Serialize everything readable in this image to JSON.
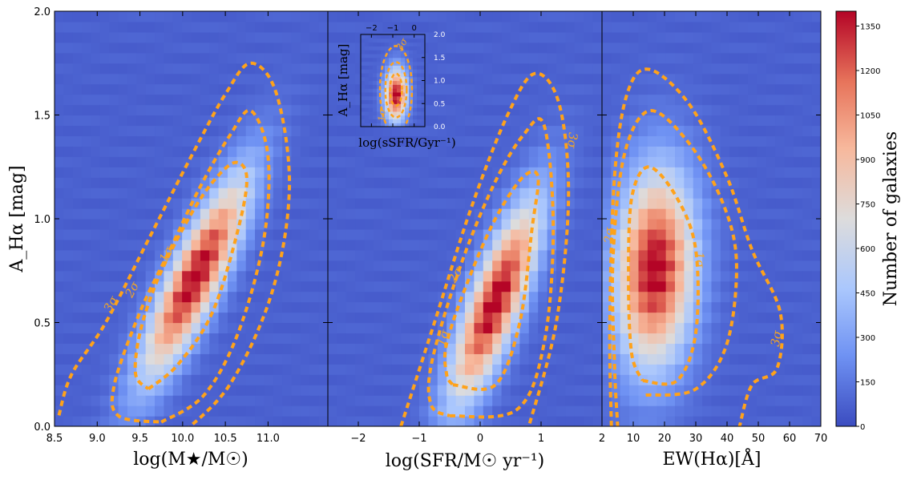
{
  "chart_data": [
    {
      "type": "heatmap",
      "name": "mass_panel",
      "xlabel": "log(M★/M☉)",
      "ylabel": "A_Hα [mag]",
      "xlim": [
        8.5,
        11.7
      ],
      "ylim": [
        0.0,
        2.0
      ],
      "xticks": [
        "8.5",
        "9.0",
        "9.5",
        "10.0",
        "10.5",
        "11.0"
      ],
      "yticks": [
        "0.0",
        "0.5",
        "1.0",
        "1.5",
        "2.0"
      ],
      "peak": {
        "x": 10.15,
        "y": 0.72,
        "count": 1400
      },
      "contour_labels": [
        "1σ",
        "2σ",
        "3σ"
      ],
      "contours": [
        {
          "level": "1σ",
          "points": [
            [
              9.6,
              0.18
            ],
            [
              9.95,
              0.3
            ],
            [
              10.35,
              0.55
            ],
            [
              10.65,
              0.95
            ],
            [
              10.75,
              1.2
            ],
            [
              10.6,
              1.27
            ],
            [
              10.3,
              1.15
            ],
            [
              10.0,
              0.95
            ],
            [
              9.7,
              0.7
            ],
            [
              9.5,
              0.45
            ],
            [
              9.45,
              0.25
            ],
            [
              9.6,
              0.18
            ]
          ]
        },
        {
          "level": "2σ",
          "points": [
            [
              9.75,
              0.02
            ],
            [
              10.25,
              0.15
            ],
            [
              10.65,
              0.45
            ],
            [
              10.95,
              0.9
            ],
            [
              11.0,
              1.3
            ],
            [
              10.8,
              1.52
            ],
            [
              10.55,
              1.4
            ],
            [
              10.2,
              1.15
            ],
            [
              9.85,
              0.85
            ],
            [
              9.5,
              0.55
            ],
            [
              9.2,
              0.2
            ],
            [
              9.25,
              0.05
            ],
            [
              9.75,
              0.02
            ]
          ]
        },
        {
          "level": "3σ",
          "points": [
            [
              9.95,
              -0.05
            ],
            [
              10.55,
              0.2
            ],
            [
              11.05,
              0.65
            ],
            [
              11.25,
              1.15
            ],
            [
              11.1,
              1.6
            ],
            [
              10.8,
              1.75
            ],
            [
              10.5,
              1.6
            ],
            [
              10.1,
              1.3
            ],
            [
              9.6,
              0.9
            ],
            [
              9.1,
              0.5
            ],
            [
              8.7,
              0.25
            ],
            [
              8.55,
              0.05
            ]
          ]
        }
      ]
    },
    {
      "type": "heatmap",
      "name": "sfr_panel",
      "xlabel": "log(SFR/M☉ yr⁻¹)",
      "xlim": [
        -2.5,
        2.0
      ],
      "ylim": [
        0.0,
        2.0
      ],
      "xticks": [
        "−2",
        "−1",
        "0",
        "1",
        "2"
      ],
      "peak": {
        "x": 0.25,
        "y": 0.6,
        "count": 1400
      },
      "contour_labels": [
        "1σ",
        "2σ",
        "3σ"
      ],
      "contours": [
        {
          "level": "1σ",
          "points": [
            [
              -0.45,
              0.2
            ],
            [
              0.25,
              0.2
            ],
            [
              0.65,
              0.5
            ],
            [
              0.85,
              0.95
            ],
            [
              0.95,
              1.2
            ],
            [
              0.7,
              1.2
            ],
            [
              0.25,
              1.0
            ],
            [
              -0.2,
              0.7
            ],
            [
              -0.55,
              0.4
            ],
            [
              -0.55,
              0.25
            ],
            [
              -0.45,
              0.2
            ]
          ]
        },
        {
          "level": "2σ",
          "points": [
            [
              -0.5,
              0.05
            ],
            [
              0.6,
              0.08
            ],
            [
              1.05,
              0.4
            ],
            [
              1.2,
              0.95
            ],
            [
              1.05,
              1.45
            ],
            [
              0.7,
              1.4
            ],
            [
              0.2,
              1.15
            ],
            [
              -0.35,
              0.75
            ],
            [
              -0.8,
              0.3
            ],
            [
              -0.8,
              0.1
            ],
            [
              -0.5,
              0.05
            ]
          ]
        },
        {
          "level": "3σ",
          "points": [
            [
              -1.3,
              0.0
            ],
            [
              -0.75,
              0.5
            ],
            [
              -0.15,
              1.05
            ],
            [
              0.45,
              1.5
            ],
            [
              0.9,
              1.7
            ],
            [
              1.3,
              1.55
            ],
            [
              1.45,
              1.1
            ],
            [
              1.25,
              0.5
            ],
            [
              0.8,
              0.0
            ]
          ]
        }
      ],
      "inset": {
        "type": "heatmap",
        "xlabel": "log(sSFR/Gyr⁻¹)",
        "ylabel": "A_Hα [mag]",
        "xlim": [
          -2.5,
          0.5
        ],
        "ylim": [
          0.0,
          2.0
        ],
        "xticks": [
          "−2",
          "−1",
          "0"
        ],
        "yticks": [
          "0.0",
          "0.5",
          "1.0",
          "1.5",
          "2.0"
        ],
        "contour_labels": [
          "1σ",
          "3σ"
        ],
        "peak": {
          "x": -0.85,
          "y": 0.7
        }
      }
    },
    {
      "type": "heatmap",
      "name": "ew_panel",
      "xlabel": "EW(Hα)[Å]",
      "xlim": [
        0,
        70
      ],
      "ylim": [
        0.0,
        2.0
      ],
      "xticks": [
        "10",
        "20",
        "30",
        "40",
        "50",
        "60",
        "70"
      ],
      "peak": {
        "x": 17,
        "y": 0.76,
        "count": 1400
      },
      "contour_labels": [
        "1σ",
        "2σ",
        "3σ"
      ],
      "contours": [
        {
          "level": "1σ",
          "points": [
            [
              13,
              0.22
            ],
            [
              24,
              0.22
            ],
            [
              30,
              0.45
            ],
            [
              30,
              0.85
            ],
            [
              24,
              1.1
            ],
            [
              15,
              1.25
            ],
            [
              9.5,
              1.1
            ],
            [
              8.5,
              0.7
            ],
            [
              9.5,
              0.35
            ],
            [
              13,
              0.22
            ]
          ]
        },
        {
          "level": "2σ",
          "points": [
            [
              14,
              0.15
            ],
            [
              30,
              0.18
            ],
            [
              40,
              0.4
            ],
            [
              43,
              0.8
            ],
            [
              38,
              1.1
            ],
            [
              27,
              1.38
            ],
            [
              15,
              1.52
            ],
            [
              7,
              1.3
            ],
            [
              3.5,
              0.8
            ],
            [
              4,
              0.3
            ],
            [
              5,
              0.0
            ]
          ]
        },
        {
          "level": "3σ",
          "points": [
            [
              3,
              0.0
            ],
            [
              2.5,
              0.5
            ],
            [
              4,
              1.2
            ],
            [
              8,
              1.6
            ],
            [
              15,
              1.72
            ],
            [
              28,
              1.55
            ],
            [
              40,
              1.2
            ],
            [
              48,
              0.85
            ],
            [
              57,
              0.55
            ],
            [
              56,
              0.28
            ],
            [
              48,
              0.2
            ],
            [
              44,
              0.0
            ]
          ]
        }
      ]
    }
  ],
  "colorbar": {
    "label": "Number of galaxies",
    "range": [
      0,
      1400
    ],
    "ticks": [
      "0",
      "150",
      "300",
      "450",
      "600",
      "750",
      "900",
      "1050",
      "1200",
      "1350"
    ],
    "colormap": [
      "#3b4cc0",
      "#6f92f3",
      "#aac7fd",
      "#dddcdc",
      "#f7b89c",
      "#e7745b",
      "#b40426"
    ]
  },
  "contour_color": "#ffa21a"
}
